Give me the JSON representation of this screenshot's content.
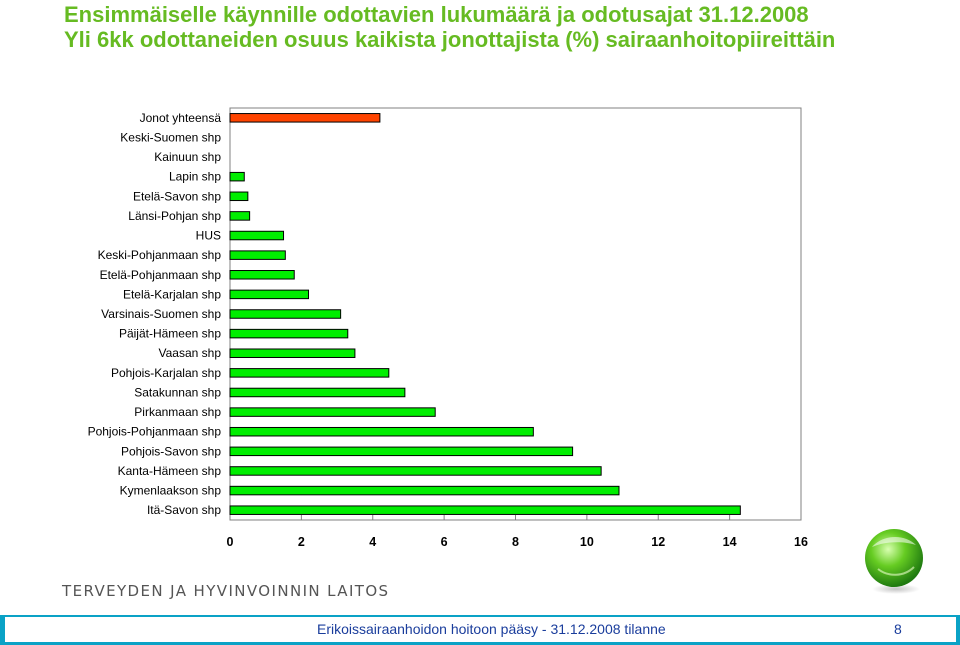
{
  "slide": {
    "title_line1": "Ensimmäiselle käynnille odottavien lukumäärä ja odotusajat 31.12.2008",
    "title_line2": "Yli 6kk odottaneiden osuus kaikista jonottajista (%) sairaanhoitopiireittäin",
    "organization": "TERVEYDEN JA HYVINVOINNIN LAITOS",
    "footer_text": "Erikoissairaanhoidon hoitoon pääsy - 31.12.2008 tilanne",
    "page_number": "8",
    "logo_icon": "green-sphere-logo"
  },
  "chart_data": {
    "type": "bar",
    "orientation": "horizontal",
    "title": "",
    "xlabel": "",
    "ylabel": "",
    "xlim": [
      0,
      16
    ],
    "xticks": [
      0,
      2,
      4,
      6,
      8,
      10,
      12,
      14,
      16
    ],
    "grid": false,
    "legend": "none",
    "highlight_color": "#ff4400",
    "bar_color": "#00ee00",
    "categories": [
      "Jonot yhteensä",
      "Keski-Suomen shp",
      "Kainuun shp",
      "Lapin shp",
      "Etelä-Savon shp",
      "Länsi-Pohjan shp",
      "HUS",
      "Keski-Pohjanmaan shp",
      "Etelä-Pohjanmaan shp",
      "Etelä-Karjalan shp",
      "Varsinais-Suomen shp",
      "Päijät-Hämeen shp",
      "Vaasan shp",
      "Pohjois-Karjalan shp",
      "Satakunnan shp",
      "Pirkanmaan shp",
      "Pohjois-Pohjanmaan shp",
      "Pohjois-Savon shp",
      "Kanta-Hämeen shp",
      "Kymenlaakson shp",
      "Itä-Savon shp"
    ],
    "values": [
      4.2,
      0,
      0,
      0.4,
      0.5,
      0.55,
      1.5,
      1.55,
      1.8,
      2.2,
      3.1,
      3.3,
      3.5,
      4.45,
      4.9,
      5.75,
      8.5,
      9.6,
      10.4,
      10.9,
      14.3
    ],
    "highlight_index": 0
  }
}
